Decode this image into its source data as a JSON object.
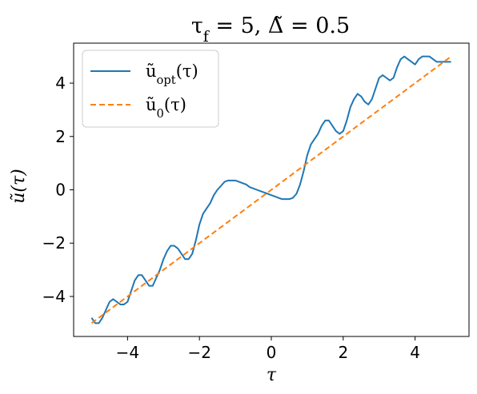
{
  "chart_data": {
    "type": "line",
    "title": "τ_f = 5,  Δ̃ = 0.5",
    "xlabel": "τ",
    "ylabel": "ũ(τ)",
    "xlim": [
      -5.5,
      5.5
    ],
    "ylim": [
      -5.5,
      5.5
    ],
    "x_ticks": [
      -4,
      -2,
      0,
      2,
      4
    ],
    "y_ticks": [
      -4,
      -2,
      0,
      2,
      4
    ],
    "x_tick_labels": [
      "−4",
      "−2",
      "0",
      "2",
      "4"
    ],
    "y_tick_labels": [
      "−4",
      "−2",
      "0",
      "2",
      "4"
    ],
    "grid": false,
    "legend_position": "top-left",
    "series": [
      {
        "name": "ũ_opt(τ)",
        "color": "#1f77b4",
        "style": "solid",
        "x": [
          -5.0,
          -4.9,
          -4.8,
          -4.7,
          -4.6,
          -4.5,
          -4.4,
          -4.3,
          -4.2,
          -4.1,
          -4.0,
          -3.9,
          -3.8,
          -3.7,
          -3.6,
          -3.5,
          -3.4,
          -3.3,
          -3.2,
          -3.1,
          -3.0,
          -2.9,
          -2.8,
          -2.7,
          -2.6,
          -2.5,
          -2.4,
          -2.3,
          -2.2,
          -2.1,
          -2.0,
          -1.9,
          -1.8,
          -1.7,
          -1.6,
          -1.5,
          -1.4,
          -1.3,
          -1.2,
          -1.1,
          -1.0,
          -0.9,
          -0.8,
          -0.7,
          -0.6,
          -0.5,
          -0.4,
          -0.3,
          -0.2,
          -0.1,
          0.0,
          0.1,
          0.2,
          0.3,
          0.4,
          0.5,
          0.6,
          0.7,
          0.8,
          0.9,
          1.0,
          1.1,
          1.2,
          1.3,
          1.4,
          1.5,
          1.6,
          1.7,
          1.8,
          1.9,
          2.0,
          2.1,
          2.2,
          2.3,
          2.4,
          2.5,
          2.6,
          2.7,
          2.8,
          2.9,
          3.0,
          3.1,
          3.2,
          3.3,
          3.4,
          3.5,
          3.6,
          3.7,
          3.8,
          3.9,
          4.0,
          4.1,
          4.2,
          4.3,
          4.4,
          4.5,
          4.6,
          4.7,
          4.8,
          4.9,
          5.0
        ],
        "y": [
          -4.8,
          -5.0,
          -5.0,
          -4.8,
          -4.5,
          -4.2,
          -4.1,
          -4.2,
          -4.3,
          -4.3,
          -4.2,
          -3.8,
          -3.4,
          -3.2,
          -3.2,
          -3.4,
          -3.6,
          -3.6,
          -3.3,
          -3.0,
          -2.6,
          -2.3,
          -2.1,
          -2.1,
          -2.2,
          -2.4,
          -2.6,
          -2.6,
          -2.4,
          -1.9,
          -1.3,
          -0.9,
          -0.7,
          -0.5,
          -0.2,
          0.0,
          0.15,
          0.3,
          0.35,
          0.35,
          0.35,
          0.3,
          0.25,
          0.2,
          0.1,
          0.05,
          0.0,
          -0.05,
          -0.1,
          -0.15,
          -0.2,
          -0.25,
          -0.3,
          -0.35,
          -0.35,
          -0.35,
          -0.3,
          -0.15,
          0.2,
          0.7,
          1.3,
          1.7,
          1.9,
          2.1,
          2.4,
          2.6,
          2.6,
          2.4,
          2.2,
          2.1,
          2.2,
          2.6,
          3.1,
          3.4,
          3.6,
          3.5,
          3.3,
          3.2,
          3.4,
          3.8,
          4.2,
          4.3,
          4.2,
          4.1,
          4.2,
          4.6,
          4.9,
          5.0,
          4.9,
          4.8,
          4.7,
          4.9,
          5.0,
          5.0,
          5.0,
          4.9,
          4.8,
          4.8,
          4.8,
          4.8,
          4.8
        ]
      },
      {
        "name": "ũ_0(τ)",
        "color": "#ff7f0e",
        "style": "dashed",
        "x": [
          -5.0,
          5.0
        ],
        "y": [
          -5.0,
          5.0
        ]
      }
    ]
  }
}
